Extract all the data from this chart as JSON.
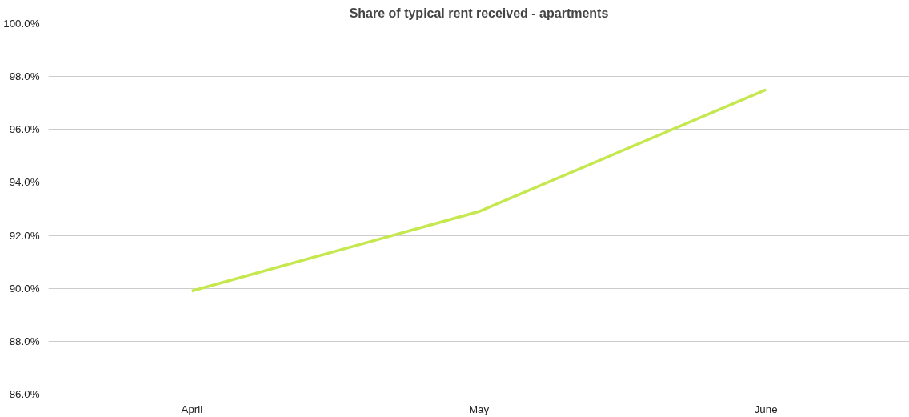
{
  "chart_data": {
    "type": "line",
    "title": "Share of typical rent received - apartments",
    "categories": [
      "April",
      "May",
      "June"
    ],
    "series": [
      {
        "color": "#c5e84f",
        "values": [
          89.9,
          92.9,
          97.5
        ]
      }
    ],
    "ylim": [
      86,
      100
    ],
    "yticks": [
      {
        "value": 86,
        "label": "86.0%"
      },
      {
        "value": 88,
        "label": "88.0%"
      },
      {
        "value": 90,
        "label": "90.0%"
      },
      {
        "value": 92,
        "label": "92.0%"
      },
      {
        "value": 94,
        "label": "94.0%"
      },
      {
        "value": 96,
        "label": "96.0%"
      },
      {
        "value": 98,
        "label": "98.0%"
      },
      {
        "value": 100,
        "label": "100.0%"
      }
    ],
    "grid": "y",
    "marker": "none",
    "line_style": "solid"
  }
}
